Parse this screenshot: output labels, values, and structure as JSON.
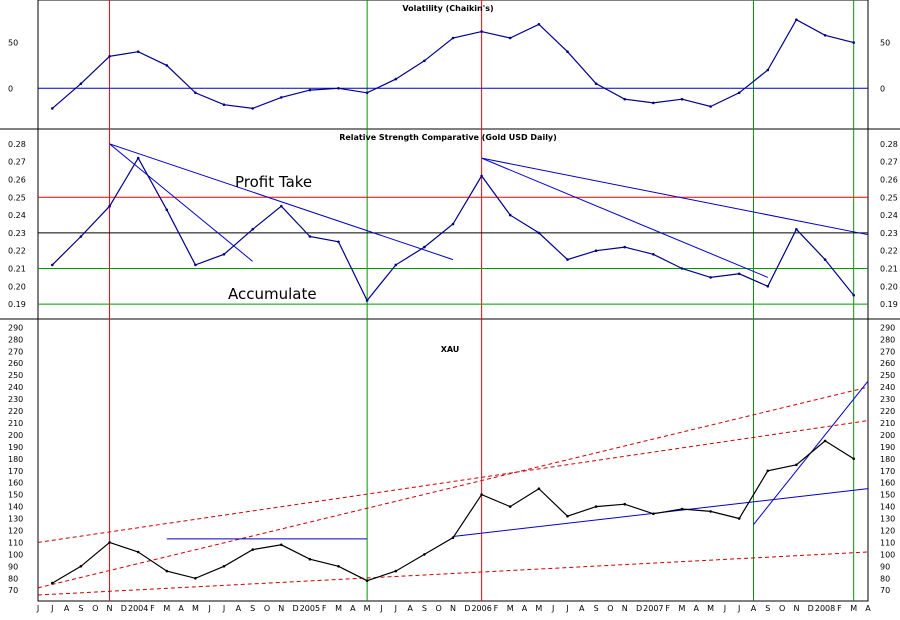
{
  "chart_data": [
    {
      "panel": "volatility",
      "type": "line",
      "title": "Volatility (Chaikin's)",
      "yticks": [
        50,
        0
      ],
      "ylim": [
        -38,
        90
      ],
      "series_color": "#00008b",
      "zero_line_color": "#0000cc",
      "x": [
        "2003-07",
        "2003-09",
        "2003-11",
        "2004-01",
        "2004-03",
        "2004-05",
        "2004-07",
        "2004-09",
        "2004-11",
        "2005-01",
        "2005-03",
        "2005-05",
        "2005-07",
        "2005-09",
        "2005-11",
        "2006-01",
        "2006-03",
        "2006-05",
        "2006-07",
        "2006-09",
        "2006-11",
        "2007-01",
        "2007-03",
        "2007-05",
        "2007-07",
        "2007-09",
        "2007-11",
        "2008-01",
        "2008-03"
      ],
      "values": [
        -22,
        5,
        35,
        40,
        25,
        -5,
        -18,
        -22,
        -10,
        -2,
        0,
        -5,
        10,
        30,
        55,
        62,
        55,
        70,
        40,
        5,
        -12,
        -16,
        -12,
        -20,
        -5,
        20,
        75,
        58,
        50
      ]
    },
    {
      "panel": "relative_strength",
      "type": "line",
      "title": "Relative Strength Comparative (Gold USD Daily)",
      "yticks": [
        0.28,
        0.27,
        0.26,
        0.25,
        0.24,
        0.23,
        0.22,
        0.21,
        0.2,
        0.19
      ],
      "ylim": [
        0.185,
        0.285
      ],
      "series_color": "#00008b",
      "x": [
        "2003-07",
        "2003-09",
        "2003-11",
        "2004-01",
        "2004-03",
        "2004-05",
        "2004-07",
        "2004-09",
        "2004-11",
        "2005-01",
        "2005-03",
        "2005-05",
        "2005-07",
        "2005-09",
        "2005-11",
        "2006-01",
        "2006-03",
        "2006-05",
        "2006-07",
        "2006-09",
        "2006-11",
        "2007-01",
        "2007-03",
        "2007-05",
        "2007-07",
        "2007-09",
        "2007-11",
        "2008-01",
        "2008-03"
      ],
      "values": [
        0.212,
        0.228,
        0.245,
        0.272,
        0.243,
        0.212,
        0.218,
        0.232,
        0.245,
        0.228,
        0.225,
        0.192,
        0.212,
        0.222,
        0.235,
        0.262,
        0.24,
        0.23,
        0.215,
        0.22,
        0.222,
        0.218,
        0.21,
        0.205,
        0.207,
        0.2,
        0.232,
        0.215,
        0.195
      ],
      "reference_lines": [
        {
          "value": 0.25,
          "color": "#ff0000"
        },
        {
          "value": 0.23,
          "color": "#000000"
        },
        {
          "value": 0.21,
          "color": "#009900"
        },
        {
          "value": 0.19,
          "color": "#009900"
        }
      ],
      "annotations": [
        "Profit Take",
        "Accumulate"
      ]
    },
    {
      "panel": "xau",
      "type": "line",
      "title": "XAU",
      "yticks": [
        290,
        280,
        270,
        260,
        250,
        240,
        230,
        220,
        210,
        200,
        190,
        180,
        170,
        160,
        150,
        140,
        130,
        120,
        110,
        100,
        90,
        80,
        70
      ],
      "ylim": [
        66,
        292
      ],
      "series_color": "#000000",
      "x": [
        "2003-07",
        "2003-09",
        "2003-11",
        "2004-01",
        "2004-03",
        "2004-05",
        "2004-07",
        "2004-09",
        "2004-11",
        "2005-01",
        "2005-03",
        "2005-05",
        "2005-07",
        "2005-09",
        "2005-11",
        "2006-01",
        "2006-03",
        "2006-05",
        "2006-07",
        "2006-09",
        "2006-11",
        "2007-01",
        "2007-03",
        "2007-05",
        "2007-07",
        "2007-09",
        "2007-11",
        "2008-01",
        "2008-03"
      ],
      "values": [
        76,
        90,
        110,
        102,
        86,
        80,
        90,
        104,
        108,
        96,
        90,
        78,
        86,
        100,
        114,
        150,
        140,
        155,
        132,
        140,
        142,
        134,
        138,
        136,
        130,
        170,
        175,
        195,
        180
      ],
      "month_labels": [
        "J",
        "J",
        "A",
        "S",
        "O",
        "N",
        "D",
        "2004",
        "F",
        "M",
        "A",
        "M",
        "J",
        "J",
        "A",
        "S",
        "O",
        "N",
        "D",
        "2005",
        "F",
        "M",
        "A",
        "M",
        "J",
        "J",
        "A",
        "S",
        "O",
        "N",
        "D",
        "2006",
        "F",
        "M",
        "A",
        "M",
        "J",
        "J",
        "A",
        "S",
        "O",
        "N",
        "D",
        "2007",
        "F",
        "M",
        "A",
        "M",
        "J",
        "J",
        "A",
        "S",
        "O",
        "N",
        "D",
        "2008",
        "F",
        "M",
        "A"
      ]
    }
  ],
  "colors": {
    "red_marker": "#ff0000",
    "green_marker": "#009900",
    "blue_trend": "#0000cc",
    "red_trend": "#cc0000"
  },
  "vertical_markers": [
    {
      "date": "2003-11",
      "color": "#ff0000"
    },
    {
      "date": "2005-05",
      "color": "#009900"
    },
    {
      "date": "2006-01",
      "color": "#ff0000"
    },
    {
      "date": "2007-08",
      "color": "#009900"
    },
    {
      "date": "2008-03",
      "color": "#009900"
    }
  ]
}
